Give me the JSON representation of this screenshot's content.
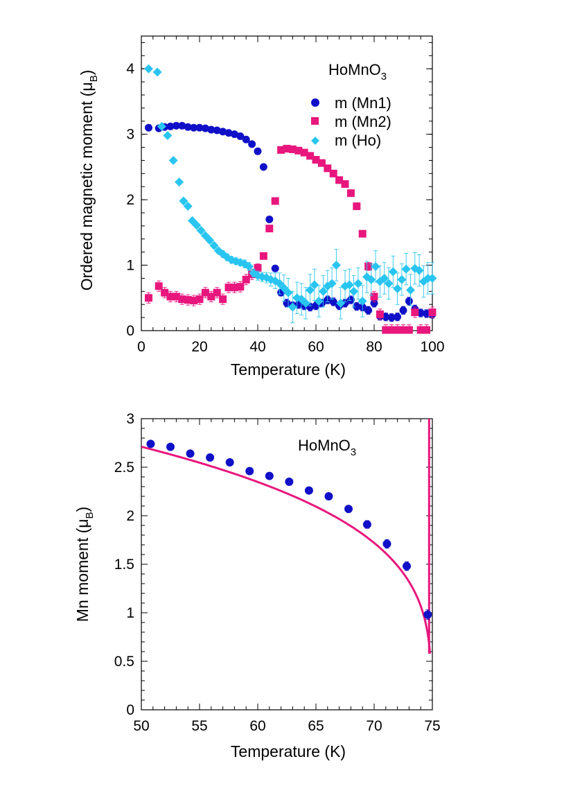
{
  "chart_data": [
    {
      "type": "scatter",
      "title": "",
      "compound_label": {
        "base": "HoMnO",
        "sub": "3"
      },
      "xlabel": "Temperature (K)",
      "ylabel": {
        "text": "Ordered magnetic moment (μ",
        "sub": "B",
        "close": ")"
      },
      "xlim": [
        0,
        100
      ],
      "ylim": [
        0,
        4.5
      ],
      "xticks": [
        "0",
        "20",
        "40",
        "60",
        "80",
        "100"
      ],
      "yticks": [
        "0",
        "1",
        "2",
        "3",
        "4"
      ],
      "grid": false,
      "legend_position": "top-right",
      "series": [
        {
          "name": "m (Mn1)",
          "color": "#1010c8",
          "marker": "circle",
          "x": [
            2.5,
            6,
            8,
            10,
            12,
            14,
            16,
            18,
            20,
            22,
            24,
            26,
            28,
            30,
            32,
            34,
            36,
            38,
            40,
            42,
            44,
            46,
            48,
            50,
            52,
            54,
            56,
            58,
            60,
            62,
            64,
            66,
            68,
            70,
            72,
            74,
            76,
            78,
            80,
            82,
            84,
            86,
            88,
            90,
            92,
            94,
            96,
            98,
            100
          ],
          "y": [
            3.1,
            3.09,
            3.11,
            3.12,
            3.13,
            3.13,
            3.11,
            3.1,
            3.1,
            3.09,
            3.07,
            3.06,
            3.04,
            3.02,
            3.0,
            2.97,
            2.92,
            2.85,
            2.74,
            2.5,
            1.7,
            0.95,
            0.58,
            0.42,
            0.38,
            0.4,
            0.38,
            0.36,
            0.38,
            0.42,
            0.47,
            0.44,
            0.38,
            0.42,
            0.47,
            0.37,
            0.36,
            0.31,
            0.42,
            0.22,
            0.21,
            0.2,
            0.21,
            0.31,
            0.45,
            0.33,
            0.27,
            0.26,
            0.25
          ],
          "err": [
            0.02,
            0.02,
            0.02,
            0.02,
            0.02,
            0.02,
            0.02,
            0.02,
            0.02,
            0.02,
            0.02,
            0.02,
            0.02,
            0.02,
            0.02,
            0.02,
            0.02,
            0.02,
            0.03,
            0.03,
            0.03,
            0.04,
            0.05,
            0.06,
            0.06,
            0.06,
            0.06,
            0.06,
            0.06,
            0.06,
            0.06,
            0.06,
            0.06,
            0.06,
            0.06,
            0.06,
            0.06,
            0.06,
            0.06,
            0.06,
            0.06,
            0.06,
            0.06,
            0.06,
            0.06,
            0.06,
            0.06,
            0.06,
            0.06
          ]
        },
        {
          "name": "m (Mn2)",
          "color": "#e8177d",
          "marker": "square",
          "x": [
            2.5,
            6,
            8,
            10,
            12,
            14,
            16,
            18,
            20,
            22,
            24,
            26,
            28,
            30,
            32,
            34,
            36,
            38,
            40,
            42,
            44,
            46,
            48,
            50,
            52,
            54,
            56,
            58,
            60,
            62,
            64,
            66,
            68,
            70,
            72,
            74,
            76,
            78,
            80,
            82,
            84,
            86,
            88,
            90,
            92,
            94,
            96,
            98,
            100
          ],
          "y": [
            0.5,
            0.68,
            0.58,
            0.52,
            0.52,
            0.48,
            0.47,
            0.46,
            0.48,
            0.58,
            0.52,
            0.58,
            0.48,
            0.66,
            0.66,
            0.67,
            0.78,
            0.86,
            0.96,
            1.14,
            1.56,
            1.98,
            2.76,
            2.78,
            2.77,
            2.75,
            2.72,
            2.67,
            2.61,
            2.56,
            2.48,
            2.4,
            2.3,
            2.24,
            2.1,
            1.9,
            1.48,
            0.98,
            0.52,
            0.25,
            0.01,
            0.01,
            0.01,
            0.01,
            0.01,
            0.28,
            0.01,
            0.01,
            0.28
          ],
          "err": [
            0.08,
            0.08,
            0.08,
            0.08,
            0.08,
            0.08,
            0.08,
            0.08,
            0.08,
            0.08,
            0.08,
            0.08,
            0.08,
            0.08,
            0.08,
            0.08,
            0.08,
            0.08,
            0.06,
            0.05,
            0.04,
            0.04,
            0.03,
            0.03,
            0.03,
            0.03,
            0.03,
            0.03,
            0.03,
            0.03,
            0.03,
            0.03,
            0.03,
            0.03,
            0.03,
            0.04,
            0.05,
            0.06,
            0.08,
            0.08,
            0.08,
            0.08,
            0.08,
            0.08,
            0.08,
            0.08,
            0.08,
            0.08,
            0.08
          ]
        },
        {
          "name": "m (Ho)",
          "color": "#29c5f0",
          "marker": "diamond",
          "x": [
            2.5,
            5.5,
            7,
            9,
            11,
            13,
            14.5,
            16,
            17.5,
            19,
            20.5,
            22,
            23.5,
            25,
            26.5,
            28,
            29.5,
            31,
            32.5,
            34,
            35.5,
            37,
            38.5,
            40,
            41.5,
            43,
            44.5,
            46,
            47.5,
            49,
            50.5,
            52,
            53.5,
            55,
            56.5,
            58,
            59.5,
            61,
            62.5,
            64,
            65.5,
            67,
            68.5,
            70,
            71.5,
            73,
            74.5,
            76,
            77.5,
            79,
            80.5,
            82,
            83.5,
            85,
            86.5,
            88,
            89.5,
            91,
            92.5,
            94,
            95.5,
            97,
            98.5,
            100
          ],
          "y": [
            4.0,
            3.95,
            3.12,
            2.98,
            2.6,
            2.27,
            1.98,
            1.9,
            1.68,
            1.61,
            1.53,
            1.45,
            1.38,
            1.3,
            1.22,
            1.17,
            1.12,
            1.08,
            1.06,
            1.04,
            1.02,
            0.98,
            0.88,
            0.84,
            0.82,
            0.81,
            0.78,
            0.76,
            0.72,
            0.65,
            0.58,
            0.36,
            0.5,
            0.48,
            0.42,
            0.62,
            0.7,
            0.45,
            0.6,
            0.68,
            0.72,
            1.0,
            0.42,
            0.68,
            0.7,
            0.6,
            0.72,
            0.45,
            0.82,
            0.78,
            0.98,
            0.75,
            0.8,
            0.72,
            0.9,
            0.64,
            0.78,
            0.94,
            0.62,
            0.95,
            0.92,
            0.75,
            0.8,
            0.8
          ],
          "err": [
            0.02,
            0.02,
            0.02,
            0.02,
            0.02,
            0.02,
            0.03,
            0.03,
            0.03,
            0.03,
            0.03,
            0.03,
            0.04,
            0.04,
            0.04,
            0.05,
            0.05,
            0.05,
            0.05,
            0.05,
            0.06,
            0.06,
            0.06,
            0.07,
            0.07,
            0.08,
            0.1,
            0.12,
            0.16,
            0.2,
            0.22,
            0.24,
            0.24,
            0.24,
            0.24,
            0.24,
            0.24,
            0.24,
            0.24,
            0.24,
            0.24,
            0.24,
            0.24,
            0.24,
            0.24,
            0.24,
            0.24,
            0.24,
            0.24,
            0.24,
            0.24,
            0.24,
            0.24,
            0.24,
            0.24,
            0.24,
            0.24,
            0.24,
            0.24,
            0.24,
            0.24,
            0.24,
            0.24,
            0.24
          ]
        }
      ]
    },
    {
      "type": "scatter",
      "title": "",
      "compound_label": {
        "base": "HoMnO",
        "sub": "3"
      },
      "xlabel": "Temperature (K)",
      "ylabel": {
        "text": "Mn moment (μ",
        "sub": "B",
        "close": ")"
      },
      "xlim": [
        50,
        75
      ],
      "ylim": [
        0,
        3
      ],
      "xticks": [
        "50",
        "55",
        "60",
        "65",
        "70",
        "75"
      ],
      "yticks": [
        "0",
        "0.5",
        "1",
        "1.5",
        "2",
        "2.5",
        "3"
      ],
      "grid": false,
      "series": [
        {
          "color": "#1010c8",
          "marker": "circle",
          "x": [
            50.8,
            52.5,
            54.2,
            55.9,
            57.6,
            59.3,
            61.0,
            62.7,
            64.4,
            66.1,
            67.8,
            69.4,
            71.1,
            72.8,
            74.6
          ],
          "y": [
            2.74,
            2.71,
            2.64,
            2.6,
            2.55,
            2.46,
            2.41,
            2.35,
            2.26,
            2.2,
            2.07,
            1.91,
            1.71,
            1.48,
            0.98
          ],
          "err": [
            0.025,
            0.025,
            0.025,
            0.025,
            0.025,
            0.03,
            0.03,
            0.03,
            0.03,
            0.035,
            0.035,
            0.04,
            0.045,
            0.045,
            0.05
          ]
        }
      ],
      "fit": {
        "color": "#e8177d",
        "form": "M0 * (1 - T/Tc)^beta",
        "M0": 3.69,
        "Tc": 74.9,
        "beta": 0.28,
        "x_range": [
          50,
          74.8
        ]
      }
    }
  ]
}
